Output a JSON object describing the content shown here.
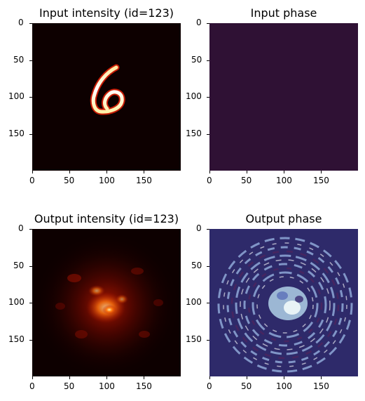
{
  "chart_data": [
    {
      "type": "heatmap",
      "title": "Input intensity (id=123)",
      "colormap": "hot",
      "background": "#0d0000",
      "x_ticks": [
        0,
        50,
        100,
        150
      ],
      "y_ticks": [
        0,
        50,
        100,
        150
      ],
      "xlim": [
        0,
        199
      ],
      "ylim": [
        199,
        0
      ],
      "content": "handwritten digit 6 centered around (100, 100)"
    },
    {
      "type": "heatmap",
      "title": "Input phase",
      "colormap": "twilight_shifted",
      "background": "#2f1134",
      "x_ticks": [
        0,
        50,
        100,
        150
      ],
      "y_ticks": [
        0,
        50,
        100,
        150
      ],
      "xlim": [
        0,
        199
      ],
      "ylim": [
        199,
        0
      ],
      "content": "uniform phase"
    },
    {
      "type": "heatmap",
      "title": "Output intensity (id=123)",
      "colormap": "hot",
      "background": "#0d0000",
      "x_ticks": [
        0,
        50,
        100,
        150
      ],
      "y_ticks": [
        0,
        50,
        100,
        150
      ],
      "xlim": [
        0,
        199
      ],
      "ylim": [
        199,
        0
      ],
      "content": "diffuse speckle pattern, brightest near (100, 100)"
    },
    {
      "type": "heatmap",
      "title": "Output phase",
      "colormap": "twilight",
      "background": "#2e2a6a",
      "x_ticks": [
        0,
        50,
        100,
        150
      ],
      "y_ticks": [
        0,
        50,
        100,
        150
      ],
      "xlim": [
        0,
        199
      ],
      "ylim": [
        199,
        0
      ],
      "content": "concentric phase rings around center"
    }
  ]
}
